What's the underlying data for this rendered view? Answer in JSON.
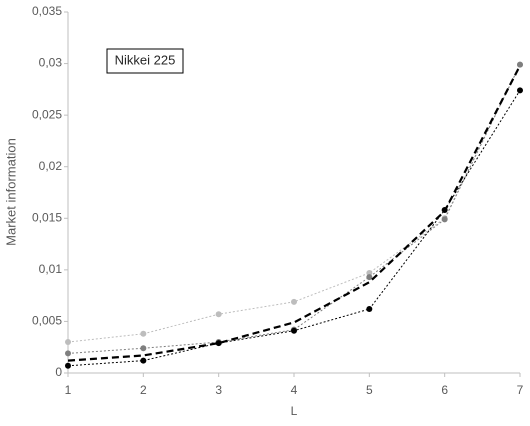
{
  "chart_data": {
    "type": "line",
    "x_label": "L",
    "y_label": "Market information",
    "annotation": "Nikkei 225",
    "x": [
      1,
      2,
      3,
      4,
      5,
      6,
      7
    ],
    "xlim": [
      1,
      7
    ],
    "xticks": [
      1,
      2,
      3,
      4,
      5,
      6,
      7
    ],
    "ylim": [
      0,
      0.035
    ],
    "yticks": [
      0,
      {
        "value": 0.005,
        "label": "0,005"
      },
      {
        "value": 0.01,
        "label": "0,01"
      },
      {
        "value": 0.015,
        "label": "0,015"
      },
      {
        "value": 0.02,
        "label": "0,02"
      },
      {
        "value": 0.025,
        "label": "0,025"
      },
      {
        "value": 0.03,
        "label": "0,03"
      },
      {
        "value": 0.035,
        "label": "0,035"
      }
    ],
    "grid": false,
    "series": [
      {
        "color": "#bdbdbd",
        "dashed": "dotted",
        "markers": true,
        "values": [
          0.003,
          0.0038,
          0.0057,
          0.0069,
          0.0097,
          0.015,
          0.0299
        ]
      },
      {
        "color": "#7f7f7f",
        "dashed": "dotted",
        "markers": true,
        "values": [
          0.0019,
          0.0024,
          0.003,
          0.0042,
          0.0093,
          0.0149,
          0.0299
        ]
      },
      {
        "color": "#000000",
        "dashed": "dotted",
        "markers": true,
        "values": [
          0.0007,
          0.0012,
          0.0029,
          0.0041,
          0.0062,
          0.0158,
          0.0274
        ]
      },
      {
        "color": "#000000",
        "dashed": "dashed",
        "markers": false,
        "values": [
          0.0012,
          0.0017,
          0.0029,
          0.0049,
          0.0088,
          0.0157,
          0.0298
        ]
      }
    ]
  }
}
